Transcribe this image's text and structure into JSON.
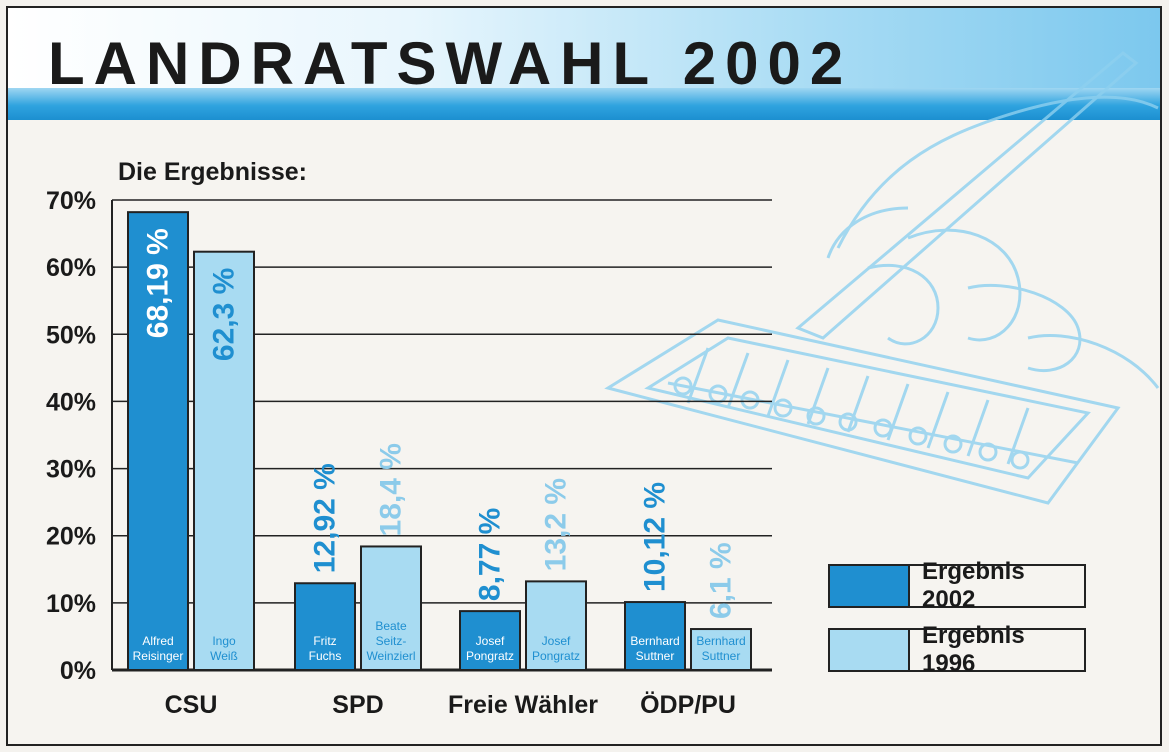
{
  "banner": {
    "title": "LANDRATSWAHL 2002"
  },
  "subtitle": "Die Ergebnisse:",
  "colors": {
    "result_2002": "#1f8fd0",
    "result_1996": "#a8dbf2",
    "label_1996_text": "#8ccbea",
    "label_2002_text": "#1f8fd0"
  },
  "legend": [
    {
      "label": "Ergebnis 2002",
      "color": "#1f8fd0"
    },
    {
      "label": "Ergebnis 1996",
      "color": "#a8dbf2"
    }
  ],
  "chart_data": {
    "type": "bar",
    "title": "LANDRATSWAHL 2002",
    "subtitle": "Die Ergebnisse:",
    "ylim": [
      0,
      70
    ],
    "yticks": [
      "0%",
      "10%",
      "20%",
      "30%",
      "40%",
      "50%",
      "60%",
      "70%"
    ],
    "grid": true,
    "legend_position": "bottom-right",
    "categories": [
      "CSU",
      "SPD",
      "Freie Wähler",
      "ÖDP/PU"
    ],
    "series": [
      {
        "name": "Ergebnis 2002",
        "values": [
          68.19,
          12.92,
          8.77,
          10.12
        ],
        "value_labels": [
          "68,19 %",
          "12,92 %",
          "8,77 %",
          "10,12 %"
        ],
        "candidates": [
          [
            "Alfred",
            "Reisinger"
          ],
          [
            "Fritz",
            "Fuchs"
          ],
          [
            "Josef",
            "Pongratz"
          ],
          [
            "Bernhard",
            "Suttner"
          ]
        ]
      },
      {
        "name": "Ergebnis 1996",
        "values": [
          62.3,
          18.4,
          13.2,
          6.1
        ],
        "value_labels": [
          "62,3 %",
          "18,4 %",
          "13,2 %",
          "6,1 %"
        ],
        "candidates": [
          [
            "Ingo",
            "Weiß"
          ],
          [
            "Beate",
            "Seitz-",
            "Weinzierl"
          ],
          [
            "Josef",
            "Pongratz"
          ],
          [
            "Bernhard",
            "Suttner"
          ]
        ]
      }
    ]
  }
}
